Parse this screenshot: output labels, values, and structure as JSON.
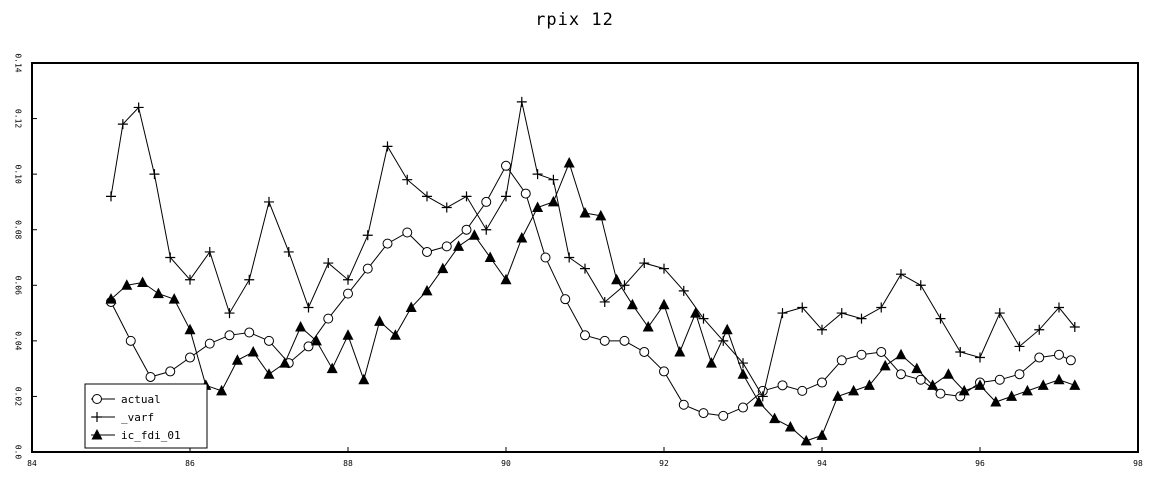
{
  "chart_data": {
    "type": "line",
    "title": "rpix 12",
    "xlabel": "",
    "ylabel": "",
    "xlim": [
      84,
      98
    ],
    "ylim": [
      0.0,
      0.14
    ],
    "x_ticks": [
      84,
      86,
      88,
      90,
      92,
      94,
      96,
      98
    ],
    "x_tick_labels": [
      "84",
      "86",
      "88",
      "90",
      "92",
      "94",
      "96",
      "98"
    ],
    "y_ticks": [
      0.0,
      0.02,
      0.04,
      0.06,
      0.08,
      0.1,
      0.12,
      0.14
    ],
    "y_tick_labels": [
      "0.0",
      "0.02",
      "0.04",
      "0.06",
      "0.08",
      "0.10",
      "0.12",
      "0.14"
    ],
    "grid": false,
    "legend_position": "bottom-left",
    "series": [
      {
        "name": "actual",
        "marker": "circle",
        "x": [
          85.0,
          85.25,
          85.5,
          85.75,
          86.0,
          86.25,
          86.5,
          86.75,
          87.0,
          87.25,
          87.5,
          87.75,
          88.0,
          88.25,
          88.5,
          88.75,
          89.0,
          89.25,
          89.5,
          89.75,
          90.0,
          90.25,
          90.5,
          90.75,
          91.0,
          91.25,
          91.5,
          91.75,
          92.0,
          92.25,
          92.5,
          92.75,
          93.0,
          93.25,
          93.5,
          93.75,
          94.0,
          94.25,
          94.5,
          94.75,
          95.0,
          95.25,
          95.5,
          95.75,
          96.0,
          96.25,
          96.5,
          96.75,
          97.0,
          97.15
        ],
        "y": [
          0.054,
          0.04,
          0.027,
          0.029,
          0.034,
          0.039,
          0.042,
          0.043,
          0.04,
          0.032,
          0.038,
          0.048,
          0.057,
          0.066,
          0.075,
          0.079,
          0.072,
          0.074,
          0.08,
          0.09,
          0.103,
          0.093,
          0.07,
          0.055,
          0.042,
          0.04,
          0.04,
          0.036,
          0.029,
          0.017,
          0.014,
          0.013,
          0.016,
          0.022,
          0.024,
          0.022,
          0.025,
          0.033,
          0.035,
          0.036,
          0.028,
          0.026,
          0.021,
          0.02,
          0.025,
          0.026,
          0.028,
          0.034,
          0.035,
          0.033
        ]
      },
      {
        "name": "_varf",
        "marker": "plus",
        "x": [
          85.0,
          85.15,
          85.35,
          85.55,
          85.75,
          86.0,
          86.25,
          86.5,
          86.75,
          87.0,
          87.25,
          87.5,
          87.75,
          88.0,
          88.25,
          88.5,
          88.75,
          89.0,
          89.25,
          89.5,
          89.75,
          90.0,
          90.2,
          90.4,
          90.6,
          90.8,
          91.0,
          91.25,
          91.5,
          91.75,
          92.0,
          92.25,
          92.5,
          92.75,
          93.0,
          93.25,
          93.5,
          93.75,
          94.0,
          94.25,
          94.5,
          94.75,
          95.0,
          95.25,
          95.5,
          95.75,
          96.0,
          96.25,
          96.5,
          96.75,
          97.0,
          97.2
        ],
        "y": [
          0.092,
          0.118,
          0.124,
          0.1,
          0.07,
          0.062,
          0.072,
          0.05,
          0.062,
          0.09,
          0.072,
          0.052,
          0.068,
          0.062,
          0.078,
          0.11,
          0.098,
          0.092,
          0.088,
          0.092,
          0.08,
          0.092,
          0.126,
          0.1,
          0.098,
          0.07,
          0.066,
          0.054,
          0.06,
          0.068,
          0.066,
          0.058,
          0.048,
          0.04,
          0.032,
          0.02,
          0.05,
          0.052,
          0.044,
          0.05,
          0.048,
          0.052,
          0.064,
          0.06,
          0.048,
          0.036,
          0.034,
          0.05,
          0.038,
          0.044,
          0.052,
          0.045
        ]
      },
      {
        "name": "ic_fdi_01",
        "marker": "triangle",
        "x": [
          85.0,
          85.2,
          85.4,
          85.6,
          85.8,
          86.0,
          86.2,
          86.4,
          86.6,
          86.8,
          87.0,
          87.2,
          87.4,
          87.6,
          87.8,
          88.0,
          88.2,
          88.4,
          88.6,
          88.8,
          89.0,
          89.2,
          89.4,
          89.6,
          89.8,
          90.0,
          90.2,
          90.4,
          90.6,
          90.8,
          91.0,
          91.2,
          91.4,
          91.6,
          91.8,
          92.0,
          92.2,
          92.4,
          92.6,
          92.8,
          93.0,
          93.2,
          93.4,
          93.6,
          93.8,
          94.0,
          94.2,
          94.4,
          94.6,
          94.8,
          95.0,
          95.2,
          95.4,
          95.6,
          95.8,
          96.0,
          96.2,
          96.4,
          96.6,
          96.8,
          97.0,
          97.2
        ],
        "y": [
          0.055,
          0.06,
          0.061,
          0.057,
          0.055,
          0.044,
          0.024,
          0.022,
          0.033,
          0.036,
          0.028,
          0.032,
          0.045,
          0.04,
          0.03,
          0.042,
          0.026,
          0.047,
          0.042,
          0.052,
          0.058,
          0.066,
          0.074,
          0.078,
          0.07,
          0.062,
          0.077,
          0.088,
          0.09,
          0.104,
          0.086,
          0.085,
          0.062,
          0.053,
          0.045,
          0.053,
          0.036,
          0.05,
          0.032,
          0.044,
          0.028,
          0.018,
          0.012,
          0.009,
          0.004,
          0.006,
          0.02,
          0.022,
          0.024,
          0.031,
          0.035,
          0.03,
          0.024,
          0.028,
          0.022,
          0.024,
          0.018,
          0.02,
          0.022,
          0.024,
          0.026,
          0.024
        ]
      }
    ]
  }
}
